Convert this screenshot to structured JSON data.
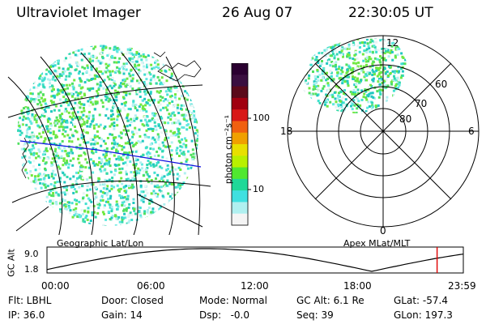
{
  "header": {
    "instrument": "Ultraviolet Imager",
    "date": "26 Aug 07",
    "time": "22:30:05 UT"
  },
  "colorbar": {
    "unit_label": "photon cm⁻²s⁻¹",
    "ticks": [
      "100",
      "10"
    ],
    "colors": [
      "#2a0030",
      "#3a0f40",
      "#5a0a1a",
      "#a00010",
      "#d81818",
      "#f06010",
      "#f0a000",
      "#e8e000",
      "#b8f000",
      "#50e830",
      "#20d898",
      "#40e0e0",
      "#b0f0f0",
      "#f4f4f4"
    ]
  },
  "left_panel": {
    "caption": "Geographic Lat/Lon"
  },
  "right_panel": {
    "caption": "Apex MLat/MLT",
    "lat_labels": [
      "80",
      "70",
      "60"
    ],
    "mlt_labels": {
      "top": "12",
      "left": "18",
      "right": "6",
      "bottom": "0"
    }
  },
  "altitude_plot": {
    "ylabel": "GC Alt",
    "yticks": [
      "9.0",
      "1.8"
    ],
    "xticks": [
      "00:00",
      "06:00",
      "12:00",
      "18:00",
      "23:59"
    ],
    "marker_time_fraction": 0.937,
    "marker_color": "#e00000"
  },
  "footer": {
    "rows": [
      [
        "Flt: LBHL",
        "Door: Closed",
        "Mode: Normal",
        "GC Alt: 6.1 Re",
        "GLat: -57.4"
      ],
      [
        "IP: 36.0",
        "Gain: 14",
        "Dsp:   -0.0",
        "Seq: 39",
        "GLon: 197.3"
      ]
    ]
  }
}
